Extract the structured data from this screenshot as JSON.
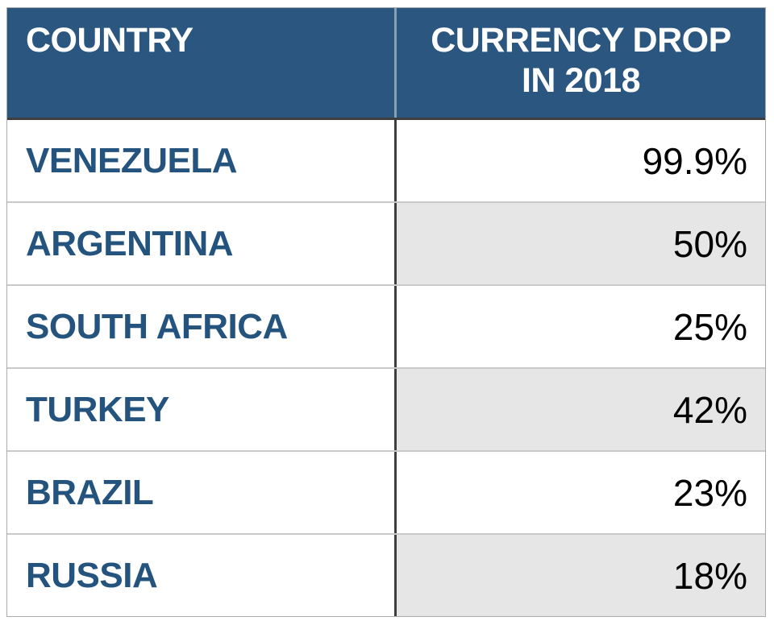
{
  "chart_data": {
    "type": "table",
    "title": "",
    "columns": [
      "COUNTRY",
      "CURRENCY DROP IN 2018"
    ],
    "categories": [
      "VENEZUELA",
      "ARGENTINA",
      "SOUTH AFRICA",
      "TURKEY",
      "BRAZIL",
      "RUSSIA"
    ],
    "values": [
      99.9,
      50,
      25,
      42,
      23,
      18
    ],
    "value_unit": "%",
    "rows": [
      [
        "VENEZUELA",
        "99.9%"
      ],
      [
        "ARGENTINA",
        "50%"
      ],
      [
        "SOUTH AFRICA",
        "25%"
      ],
      [
        "TURKEY",
        "42%"
      ],
      [
        "BRAZIL",
        "23%"
      ],
      [
        "RUSSIA",
        "18%"
      ]
    ]
  },
  "table": {
    "header": {
      "country_label": "COUNTRY",
      "drop_label": "CURRENCY DROP\nIN 2018"
    },
    "rows": [
      {
        "country": "VENEZUELA",
        "drop": "99.9%"
      },
      {
        "country": "ARGENTINA",
        "drop": "50%"
      },
      {
        "country": "SOUTH AFRICA",
        "drop": "25%"
      },
      {
        "country": "TURKEY",
        "drop": "42%"
      },
      {
        "country": "BRAZIL",
        "drop": "23%"
      },
      {
        "country": "RUSSIA",
        "drop": "18%"
      }
    ]
  },
  "colors": {
    "header_background": "#2A5680",
    "header_text": "#FFFFFF",
    "country_text": "#24547E",
    "value_text": "#000000",
    "stripe_background": "#E6E6E6",
    "column_divider": "#3E3E3E",
    "header_divider": "#8CA0B4",
    "row_separator": "#C9C9C9",
    "outer_border": "#ABABAB"
  }
}
